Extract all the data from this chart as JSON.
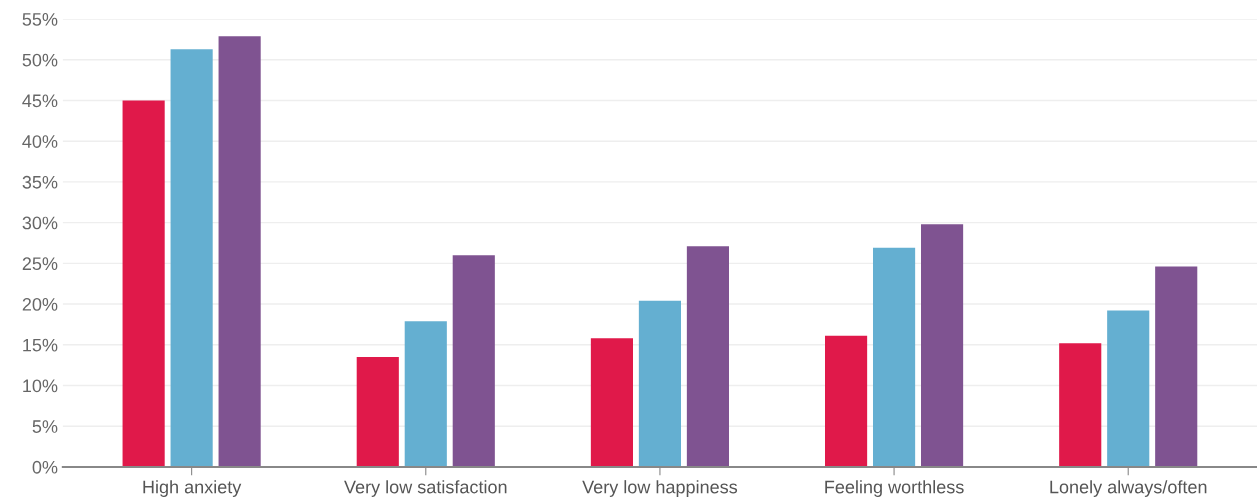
{
  "chart_data": {
    "type": "bar",
    "categories": [
      "High anxiety",
      "Very low satisfaction",
      "Very low happiness",
      "Feeling worthless",
      "Lonely always/often"
    ],
    "series": [
      {
        "color": "#e0194a",
        "values": [
          45.0,
          13.5,
          15.8,
          16.1,
          15.2
        ]
      },
      {
        "color": "#64afd1",
        "values": [
          51.3,
          17.9,
          20.4,
          26.9,
          19.2
        ]
      },
      {
        "color": "#7f5391",
        "values": [
          52.9,
          26.0,
          27.1,
          29.8,
          24.6
        ]
      }
    ],
    "ylim": [
      0,
      55
    ],
    "yticks": [
      {
        "value": 0,
        "label": "0%"
      },
      {
        "value": 5,
        "label": "5%"
      },
      {
        "value": 10,
        "label": "10%"
      },
      {
        "value": 15,
        "label": "15%"
      },
      {
        "value": 20,
        "label": "20%"
      },
      {
        "value": 25,
        "label": "25%"
      },
      {
        "value": 30,
        "label": "30%"
      },
      {
        "value": 35,
        "label": "35%"
      },
      {
        "value": 40,
        "label": "40%"
      },
      {
        "value": 45,
        "label": "45%"
      },
      {
        "value": 50,
        "label": "50%"
      },
      {
        "value": 55,
        "label": "55%"
      }
    ],
    "grid": "y",
    "legend": false
  }
}
